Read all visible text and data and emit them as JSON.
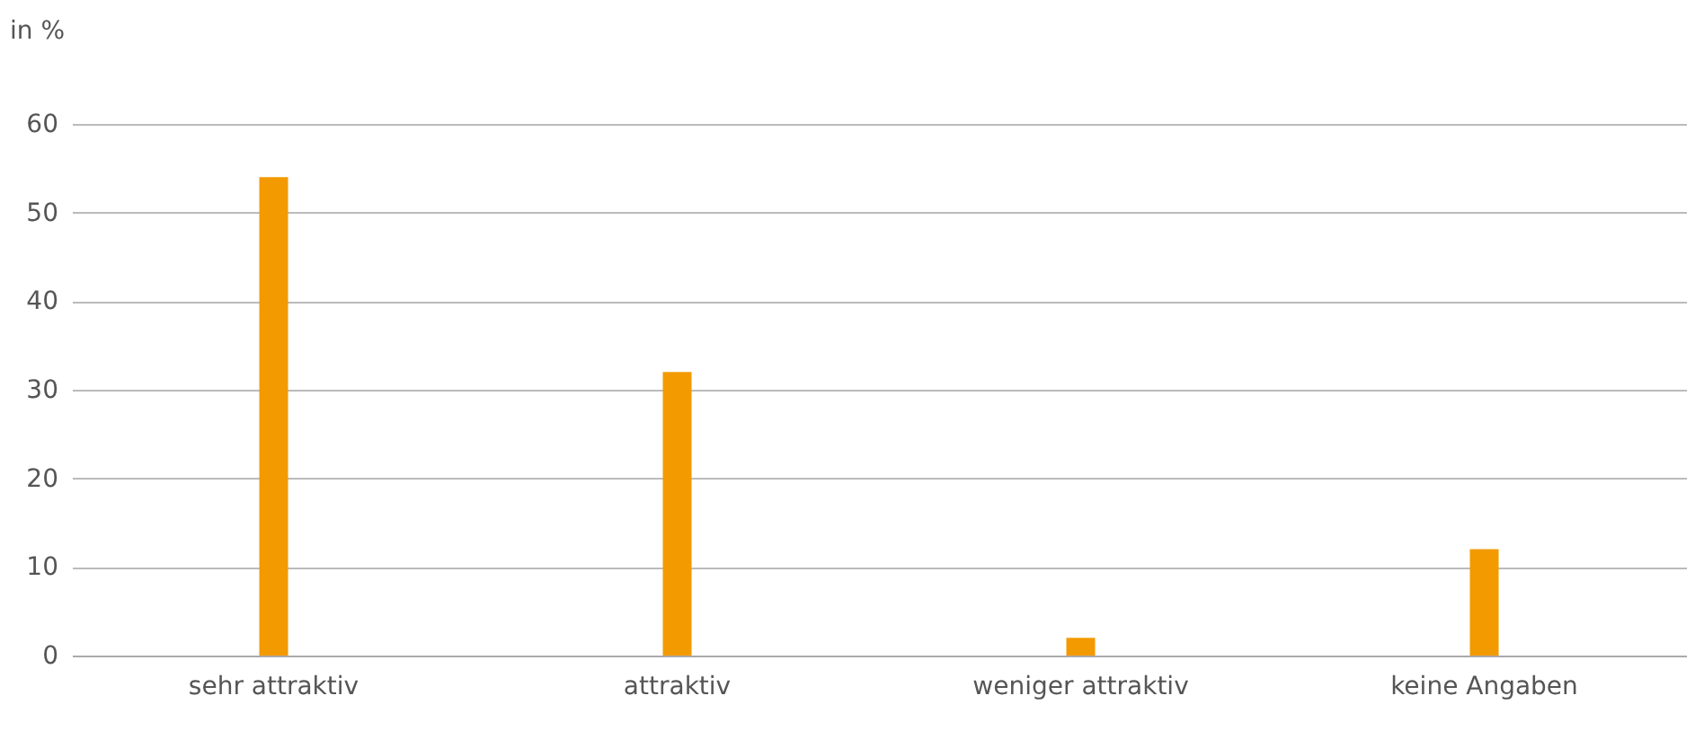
{
  "chart_data": {
    "type": "bar",
    "ylabel": "in %",
    "categories": [
      "sehr attraktiv",
      "attraktiv",
      "weniger attraktiv",
      "keine Angaben"
    ],
    "values": [
      54,
      32,
      2,
      12
    ],
    "color": "#f39a00",
    "ylim": [
      0,
      60
    ],
    "yticks": [
      0,
      10,
      20,
      30,
      40,
      50,
      60
    ],
    "grid": "y"
  }
}
